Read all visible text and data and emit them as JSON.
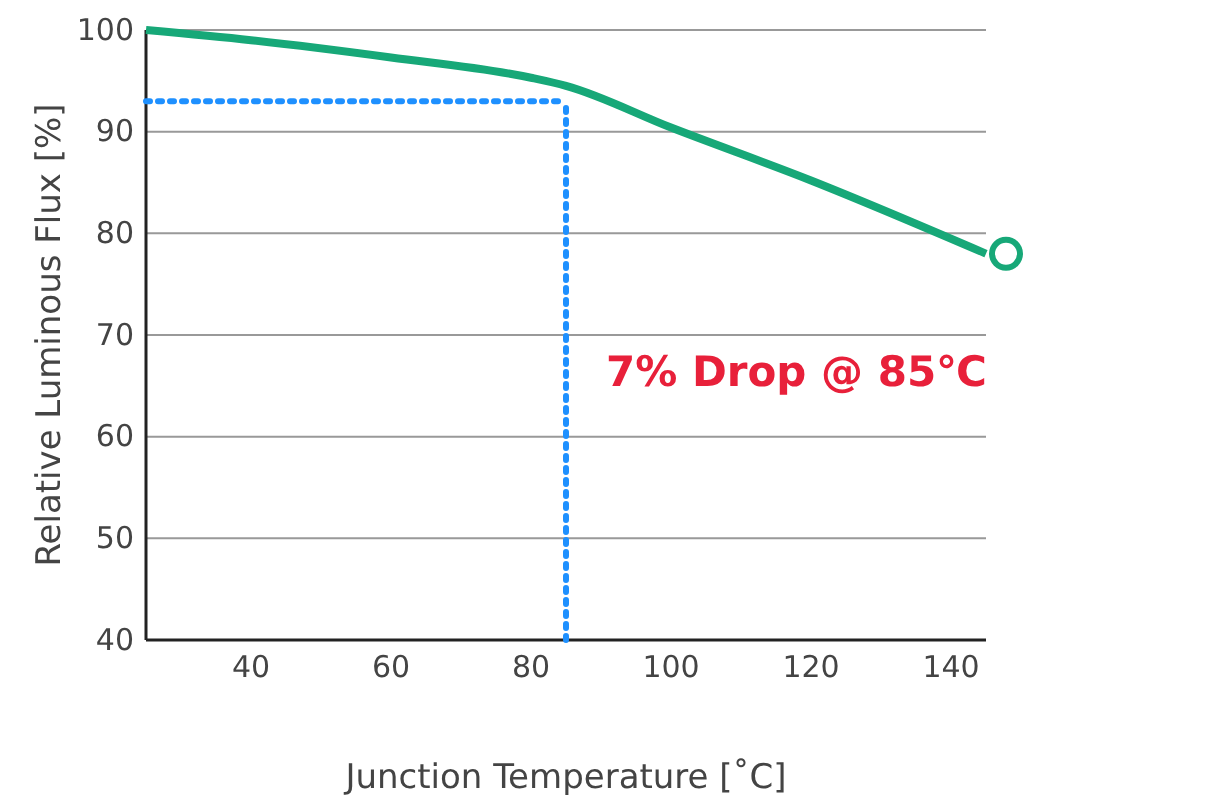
{
  "chart_data": {
    "type": "line",
    "xlabel": "Junction Temperature [˚C]",
    "ylabel": "Relative Luminous Flux [%]",
    "x": [
      25,
      40,
      60,
      80,
      85,
      100,
      120,
      145
    ],
    "series": [
      {
        "color": "#17a878",
        "values": [
          100,
          99,
          97.3,
          95.3,
          94.5,
          90.4,
          85.2,
          78
        ]
      }
    ],
    "xlim": [
      25,
      145
    ],
    "xticks": [
      40,
      60,
      80,
      100,
      120,
      140
    ],
    "ylim": [
      40,
      100
    ],
    "yticks": [
      40,
      50,
      60,
      70,
      80,
      90,
      100
    ],
    "grid": "y",
    "marker": "none",
    "line_style": "solid",
    "ref_lines": [
      {
        "axis": "y",
        "value": 93,
        "color": "#1e90ff",
        "line_style": "dotted"
      },
      {
        "axis": "x",
        "value": 85,
        "color": "#1e90ff",
        "line_style": "dotted"
      }
    ],
    "annotations": [
      {
        "text": "7% Drop @ 85℃",
        "x": 85,
        "y": 65
      }
    ]
  }
}
